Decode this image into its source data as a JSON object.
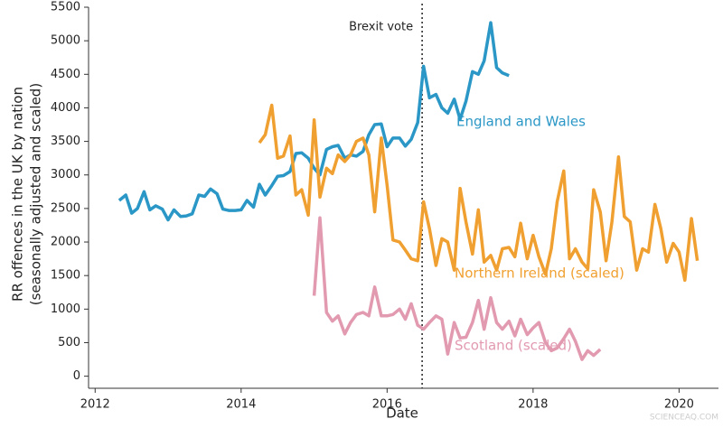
{
  "chart_data": {
    "type": "line",
    "xlabel": "Date",
    "ylabel": [
      "RR offences in the UK by nation",
      "(seasonally adjusted and scaled)"
    ],
    "xlim": [
      2011.91,
      2020.54
    ],
    "xticks": [
      2012,
      2014,
      2016,
      2018,
      2020
    ],
    "ylim": [
      -180,
      5500
    ],
    "yticks": [
      0,
      500,
      1000,
      1500,
      2000,
      2500,
      3000,
      3500,
      4000,
      4500,
      5000,
      5500
    ],
    "annotations": [
      {
        "text": "Brexit vote",
        "x": 2016.48
      }
    ],
    "watermark": "SCIENCEAQ.COM",
    "series": [
      {
        "name": "England and Wales",
        "color": "#2a97c6",
        "x": [
          2012.33,
          2012.42,
          2012.5,
          2012.58,
          2012.67,
          2012.75,
          2012.83,
          2012.92,
          2013,
          2013.08,
          2013.17,
          2013.25,
          2013.33,
          2013.42,
          2013.5,
          2013.58,
          2013.67,
          2013.75,
          2013.83,
          2013.92,
          2014,
          2014.08,
          2014.17,
          2014.25,
          2014.33,
          2014.42,
          2014.5,
          2014.58,
          2014.67,
          2014.75,
          2014.83,
          2014.92,
          2015,
          2015.08,
          2015.17,
          2015.25,
          2015.33,
          2015.42,
          2015.5,
          2015.58,
          2015.67,
          2015.75,
          2015.83,
          2015.92,
          2016,
          2016.08,
          2016.17,
          2016.25,
          2016.33,
          2016.42,
          2016.5,
          2016.58,
          2016.67,
          2016.75,
          2016.83,
          2016.92,
          2017,
          2017.08,
          2017.17,
          2017.25,
          2017.33,
          2017.42,
          2017.5,
          2017.58,
          2017.67
        ],
        "values": [
          2620,
          2700,
          2430,
          2500,
          2750,
          2480,
          2540,
          2490,
          2330,
          2480,
          2380,
          2390,
          2420,
          2700,
          2680,
          2790,
          2720,
          2490,
          2470,
          2470,
          2480,
          2620,
          2520,
          2860,
          2700,
          2840,
          2980,
          2990,
          3050,
          3320,
          3330,
          3250,
          3100,
          3000,
          3380,
          3420,
          3440,
          3250,
          3300,
          3280,
          3350,
          3600,
          3750,
          3760,
          3420,
          3550,
          3550,
          3430,
          3530,
          3780,
          4620,
          4150,
          4200,
          4000,
          3920,
          4130,
          3830,
          4100,
          4540,
          4500,
          4700,
          5270,
          4600,
          4520,
          4480
        ]
      },
      {
        "name": "Northern Ireland (scaled)",
        "color": "#f0a030",
        "x": [
          2014.25,
          2014.33,
          2014.42,
          2014.5,
          2014.58,
          2014.67,
          2014.75,
          2014.83,
          2014.92,
          2015,
          2015.08,
          2015.17,
          2015.25,
          2015.33,
          2015.42,
          2015.5,
          2015.58,
          2015.67,
          2015.75,
          2015.83,
          2015.92,
          2016,
          2016.08,
          2016.17,
          2016.25,
          2016.33,
          2016.42,
          2016.5,
          2016.58,
          2016.67,
          2016.75,
          2016.83,
          2016.92,
          2017,
          2017.08,
          2017.17,
          2017.25,
          2017.33,
          2017.42,
          2017.5,
          2017.58,
          2017.67,
          2017.75,
          2017.83,
          2017.92,
          2018,
          2018.08,
          2018.17,
          2018.25,
          2018.33,
          2018.42,
          2018.5,
          2018.58,
          2018.67,
          2018.75,
          2018.83,
          2018.92,
          2019,
          2019.08,
          2019.17,
          2019.25,
          2019.33,
          2019.42,
          2019.5,
          2019.58,
          2019.67,
          2019.75,
          2019.83,
          2019.92,
          2020,
          2020.08,
          2020.17,
          2020.25
        ],
        "values": [
          3480,
          3600,
          4040,
          3250,
          3280,
          3580,
          2700,
          2780,
          2400,
          3820,
          2670,
          3100,
          3020,
          3300,
          3200,
          3300,
          3500,
          3550,
          3300,
          2450,
          3550,
          2850,
          2030,
          2000,
          1880,
          1750,
          1720,
          2600,
          2200,
          1650,
          2050,
          2000,
          1580,
          2800,
          2300,
          1820,
          2480,
          1700,
          1800,
          1580,
          1900,
          1920,
          1780,
          2280,
          1750,
          2100,
          1780,
          1520,
          1900,
          2600,
          3060,
          1750,
          1900,
          1700,
          1600,
          2780,
          2450,
          1720,
          2300,
          3270,
          2380,
          2300,
          1580,
          1900,
          1850,
          2560,
          2200,
          1700,
          1980,
          1850,
          1430,
          2350,
          1720
        ]
      },
      {
        "name": "Scotland (scaled)",
        "color": "#e29ab0",
        "x": [
          2015,
          2015.08,
          2015.17,
          2015.25,
          2015.33,
          2015.42,
          2015.5,
          2015.58,
          2015.67,
          2015.75,
          2015.83,
          2015.92,
          2016,
          2016.08,
          2016.17,
          2016.25,
          2016.33,
          2016.42,
          2016.5,
          2016.58,
          2016.67,
          2016.75,
          2016.83,
          2016.92,
          2017,
          2017.08,
          2017.17,
          2017.25,
          2017.33,
          2017.42,
          2017.5,
          2017.58,
          2017.67,
          2017.75,
          2017.83,
          2017.92,
          2018,
          2018.08,
          2018.17,
          2018.25,
          2018.33,
          2018.42,
          2018.5,
          2018.58,
          2018.67,
          2018.75,
          2018.83,
          2018.92
        ],
        "values": [
          1200,
          2360,
          950,
          820,
          900,
          630,
          800,
          920,
          950,
          900,
          1330,
          900,
          900,
          920,
          1000,
          850,
          1080,
          760,
          700,
          800,
          900,
          850,
          330,
          800,
          570,
          580,
          800,
          1130,
          700,
          1170,
          800,
          700,
          820,
          600,
          850,
          620,
          720,
          800,
          500,
          380,
          420,
          560,
          700,
          520,
          250,
          380,
          310,
          400
        ]
      }
    ]
  }
}
